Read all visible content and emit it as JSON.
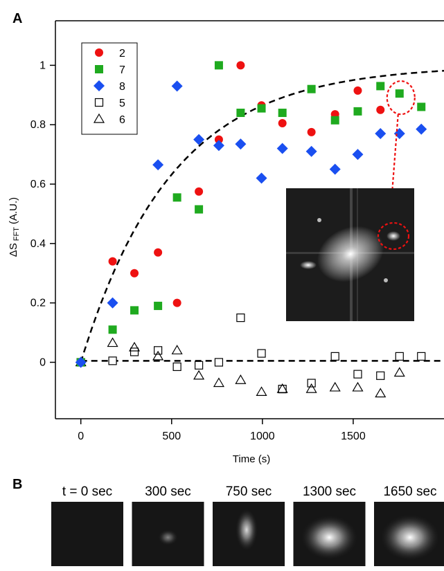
{
  "panels": {
    "a": "A",
    "b": "B"
  },
  "colors": {
    "series_2": "#ee1111",
    "series_7": "#1faa1f",
    "series_8": "#1a4ff0",
    "fit": "#000000",
    "highlight": "#ee1111"
  },
  "chart_data": {
    "type": "scatter",
    "xlabel": "Time (s)",
    "ylabel": {
      "prefix": "ΔS",
      "subscript": "FFT",
      "suffix": "(A.U.)"
    },
    "xlim": [
      -140,
      2000
    ],
    "ylim": [
      -0.19,
      1.15
    ],
    "xticks": [
      0,
      500,
      1000,
      1500
    ],
    "yticks": [
      0,
      0.2,
      0.4,
      0.6,
      0.8,
      1
    ],
    "ytick_labels": [
      "0",
      "0.2",
      "0.4",
      "0.6",
      "0.8",
      "1"
    ],
    "legend_position": "top-left",
    "series": [
      {
        "name": "2",
        "marker": "circle-filled",
        "color": "#ee1111",
        "x": [
          0,
          175,
          295,
          425,
          530,
          650,
          760,
          880,
          995,
          1110,
          1270,
          1400,
          1525,
          1650
        ],
        "y": [
          0,
          0.34,
          0.3,
          0.37,
          0.2,
          0.575,
          0.75,
          1.0,
          0.865,
          0.805,
          0.775,
          0.835,
          0.915,
          0.85
        ]
      },
      {
        "name": "7",
        "marker": "square-filled",
        "color": "#1faa1f",
        "x": [
          0,
          175,
          295,
          425,
          530,
          650,
          760,
          880,
          995,
          1110,
          1270,
          1400,
          1525,
          1650,
          1755,
          1875
        ],
        "y": [
          0,
          0.11,
          0.175,
          0.19,
          0.555,
          0.515,
          1.0,
          0.84,
          0.855,
          0.84,
          0.92,
          0.815,
          0.845,
          0.93,
          0.905,
          0.86
        ]
      },
      {
        "name": "8",
        "marker": "diamond-filled",
        "color": "#1a4ff0",
        "x": [
          0,
          175,
          425,
          530,
          650,
          760,
          880,
          995,
          1110,
          1270,
          1400,
          1525,
          1650,
          1755,
          1875
        ],
        "y": [
          0,
          0.2,
          0.665,
          0.93,
          0.75,
          0.73,
          0.735,
          0.62,
          0.72,
          0.71,
          0.65,
          0.7,
          0.77,
          0.77,
          0.785
        ]
      },
      {
        "name": "5",
        "marker": "square-open",
        "color": "#000000",
        "x": [
          0,
          175,
          295,
          425,
          530,
          650,
          760,
          880,
          995,
          1110,
          1270,
          1400,
          1525,
          1650,
          1755,
          1875
        ],
        "y": [
          0,
          0.005,
          0.035,
          0.04,
          -0.015,
          -0.01,
          0.0,
          0.15,
          0.03,
          -0.09,
          -0.07,
          0.02,
          -0.04,
          -0.045,
          0.02,
          0.02
        ]
      },
      {
        "name": "6",
        "marker": "triangle-open",
        "color": "#000000",
        "x": [
          0,
          175,
          295,
          425,
          530,
          650,
          760,
          880,
          995,
          1110,
          1270,
          1400,
          1525,
          1650,
          1755
        ],
        "y": [
          0,
          0.065,
          0.05,
          0.02,
          0.04,
          -0.045,
          -0.07,
          -0.06,
          -0.1,
          -0.09,
          -0.09,
          -0.085,
          -0.085,
          -0.105,
          -0.035
        ]
      }
    ],
    "fits": [
      {
        "kind": "exponential",
        "amplitude": 1.0,
        "tau_s": 500,
        "color": "#000000",
        "style": "dashed"
      },
      {
        "kind": "constant",
        "value": 0.005,
        "color": "#000000",
        "style": "dashed"
      }
    ],
    "highlight": {
      "x": 1755,
      "y": 0.905,
      "color": "#ee1111"
    }
  },
  "frames": [
    {
      "label": "t = 0 sec",
      "intensity": 0.0
    },
    {
      "label": "300 sec",
      "intensity": 0.12
    },
    {
      "label": "750 sec",
      "intensity": 0.5
    },
    {
      "label": "1300 sec",
      "intensity": 0.85
    },
    {
      "label": "1650 sec",
      "intensity": 0.9
    }
  ]
}
